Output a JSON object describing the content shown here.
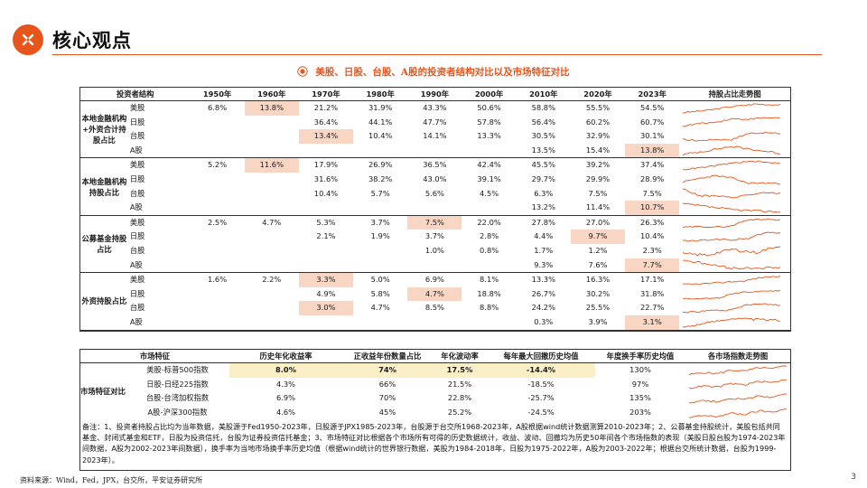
{
  "header": {
    "title": "核心观点",
    "accent": "#e8551c"
  },
  "subtitle": "美股、日股、台股、A股的投资者结构对比以及市场特征对比",
  "holdings": {
    "columns": [
      "投资者结构",
      "1950年",
      "1960年",
      "1970年",
      "1980年",
      "1990年",
      "2000年",
      "2010年",
      "2020年",
      "2023年",
      "持股占比走势图"
    ],
    "groups": [
      {
        "label": "本地金融机构+外资合计持股占比",
        "rows": [
          {
            "market": "美股",
            "values": [
              "6.8%",
              "13.8%",
              "21.2%",
              "31.9%",
              "43.3%",
              "50.6%",
              "58.8%",
              "55.5%",
              "54.5%"
            ],
            "hl": [
              1
            ]
          },
          {
            "market": "日股",
            "values": [
              "",
              "",
              "36.4%",
              "44.1%",
              "47.7%",
              "57.8%",
              "56.4%",
              "60.2%",
              "60.7%"
            ],
            "hl": []
          },
          {
            "market": "台股",
            "values": [
              "",
              "",
              "13.4%",
              "10.4%",
              "14.1%",
              "13.3%",
              "30.5%",
              "32.9%",
              "30.1%"
            ],
            "hl": [
              2
            ]
          },
          {
            "market": "A股",
            "values": [
              "",
              "",
              "",
              "",
              "",
              "",
              "13.5%",
              "15.4%",
              "13.8%"
            ],
            "hl": [
              8
            ]
          }
        ]
      },
      {
        "label": "本地金融机构持股占比",
        "rows": [
          {
            "market": "美股",
            "values": [
              "5.2%",
              "11.6%",
              "17.9%",
              "26.9%",
              "36.5%",
              "42.4%",
              "45.5%",
              "39.2%",
              "37.4%"
            ],
            "hl": [
              1
            ]
          },
          {
            "market": "日股",
            "values": [
              "",
              "",
              "31.6%",
              "38.2%",
              "43.0%",
              "39.1%",
              "29.7%",
              "29.9%",
              "28.9%"
            ],
            "hl": []
          },
          {
            "market": "台股",
            "values": [
              "",
              "",
              "10.4%",
              "5.7%",
              "5.6%",
              "4.5%",
              "6.3%",
              "7.5%",
              "7.5%"
            ],
            "hl": []
          },
          {
            "market": "A股",
            "values": [
              "",
              "",
              "",
              "",
              "",
              "",
              "13.2%",
              "11.4%",
              "10.7%"
            ],
            "hl": [
              8
            ]
          }
        ]
      },
      {
        "label": "公募基金持股占比",
        "rows": [
          {
            "market": "美股",
            "values": [
              "2.5%",
              "4.7%",
              "5.3%",
              "3.7%",
              "7.5%",
              "22.0%",
              "27.8%",
              "27.0%",
              "26.3%"
            ],
            "hl": [
              4
            ]
          },
          {
            "market": "日股",
            "values": [
              "",
              "",
              "2.1%",
              "1.9%",
              "3.7%",
              "2.8%",
              "4.4%",
              "9.7%",
              "10.4%"
            ],
            "hl": [
              7
            ]
          },
          {
            "market": "台股",
            "values": [
              "",
              "",
              "",
              "",
              "1.0%",
              "0.8%",
              "1.7%",
              "1.2%",
              "2.3%"
            ],
            "hl": []
          },
          {
            "market": "A股",
            "values": [
              "",
              "",
              "",
              "",
              "",
              "",
              "9.3%",
              "7.6%",
              "7.7%"
            ],
            "hl": [
              8
            ]
          }
        ]
      },
      {
        "label": "外资持股占比",
        "rows": [
          {
            "market": "美股",
            "values": [
              "1.6%",
              "2.2%",
              "3.3%",
              "5.0%",
              "6.9%",
              "8.1%",
              "13.3%",
              "16.3%",
              "17.1%"
            ],
            "hl": [
              2
            ]
          },
          {
            "market": "日股",
            "values": [
              "",
              "",
              "4.9%",
              "5.8%",
              "4.7%",
              "18.8%",
              "26.7%",
              "30.2%",
              "31.8%"
            ],
            "hl": [
              4
            ]
          },
          {
            "market": "台股",
            "values": [
              "",
              "",
              "3.0%",
              "4.7%",
              "8.5%",
              "8.8%",
              "24.2%",
              "25.5%",
              "22.7%"
            ],
            "hl": [
              2
            ]
          },
          {
            "market": "A股",
            "values": [
              "",
              "",
              "",
              "",
              "",
              "",
              "0.3%",
              "3.9%",
              "3.1%"
            ],
            "hl": [
              8
            ]
          }
        ]
      }
    ]
  },
  "market": {
    "columns": [
      "市场特征",
      "历史年化收益率",
      "正收益年份数量占比",
      "年化波动率",
      "每年最大回撤历史均值",
      "年度换手率历史均值",
      "各市场指数走势图"
    ],
    "group_label": "市场特征对比",
    "rows": [
      {
        "index": "美股-标普500指数",
        "values": [
          "8.0%",
          "74%",
          "17.5%",
          "-14.4%",
          "130%"
        ],
        "hl": [
          0,
          1,
          2,
          3
        ]
      },
      {
        "index": "日股-日经225指数",
        "values": [
          "4.3%",
          "66%",
          "21.5%",
          "-18.5%",
          "97%"
        ],
        "hl": []
      },
      {
        "index": "台股-台湾加权指数",
        "values": [
          "6.9%",
          "70%",
          "22.8%",
          "-25.7%",
          "135%"
        ],
        "hl": []
      },
      {
        "index": "A股-沪深300指数",
        "values": [
          "4.6%",
          "45%",
          "25.2%",
          "-24.5%",
          "203%"
        ],
        "hl": []
      }
    ]
  },
  "note": "备注：1、投资者持股占比均为当年数据，美股源于Fed1950-2023年，日股源于JPX1985-2023年，台股源于台交所1968-2023年，A股根据wind统计数据测算2010-2023年；2、公募基金持股统计，美股包括共同基金、封闭式基金和ETF，日股为投资信托，台股为证券投资信托基金；3、市场特征对比根据各个市场所有可得的历史数据统计，收益、波动、回撤均为历史50年间各个市场指数的表现（美股日股台股为1974-2023年间数据，A股为2002-2023年间数据），换手率为当地市场换手率历史均值（根据wind统计的世界银行数据，美股为1984-2018年，日股为1975-2022年，A股为2003-2022年；根据台交所统计数据，台股为1999-2023年）。",
  "source": "资料来源：Wind，Fed，JPX，台交所，平安证券研究所",
  "page_number": "3",
  "colors": {
    "highlight": "#f9d5c3",
    "highlight_yellow": "#fbefc7",
    "sparkline": "#e8551c"
  }
}
